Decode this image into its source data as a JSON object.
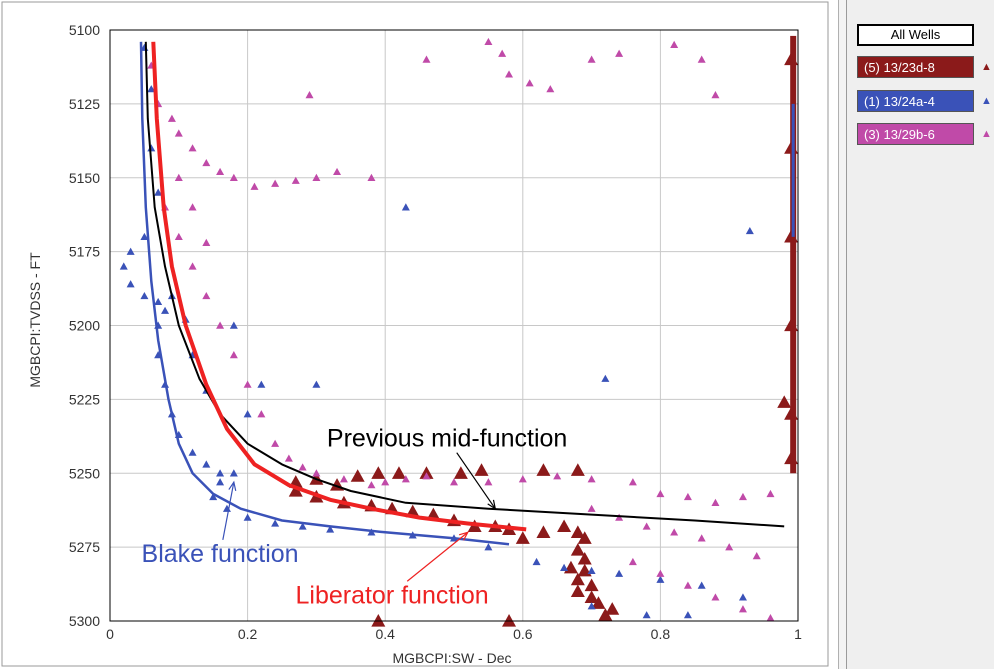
{
  "chart_data": {
    "type": "scatter",
    "xlabel": "MGBCPI:SW - Dec",
    "ylabel": "MGBCPI:TVDSS - FT",
    "xlim": [
      0,
      1
    ],
    "ylim": [
      5100,
      5300
    ],
    "y_inverted": true,
    "grid": true,
    "x_ticks": [
      "0",
      "0.2",
      "0.4",
      "0.6",
      "0.8",
      "1"
    ],
    "y_ticks": [
      "5100",
      "5125",
      "5150",
      "5175",
      "5200",
      "5225",
      "5250",
      "5275",
      "5300"
    ],
    "legend_placement": "right-panel",
    "series": [
      {
        "name": "(5) 13/23d-8",
        "color": "#8b1a1a",
        "marker": "triangle-large",
        "points": [
          [
            0.27,
            5253
          ],
          [
            0.3,
            5252
          ],
          [
            0.33,
            5254
          ],
          [
            0.36,
            5251
          ],
          [
            0.39,
            5250
          ],
          [
            0.42,
            5250
          ],
          [
            0.46,
            5250
          ],
          [
            0.51,
            5250
          ],
          [
            0.54,
            5249
          ],
          [
            0.63,
            5249
          ],
          [
            0.68,
            5249
          ],
          [
            0.27,
            5256
          ],
          [
            0.3,
            5258
          ],
          [
            0.34,
            5260
          ],
          [
            0.38,
            5261
          ],
          [
            0.41,
            5262
          ],
          [
            0.44,
            5263
          ],
          [
            0.47,
            5264
          ],
          [
            0.5,
            5266
          ],
          [
            0.53,
            5268
          ],
          [
            0.56,
            5268
          ],
          [
            0.58,
            5269
          ],
          [
            0.6,
            5272
          ],
          [
            0.63,
            5270
          ],
          [
            0.66,
            5268
          ],
          [
            0.68,
            5270
          ],
          [
            0.69,
            5272
          ],
          [
            0.68,
            5276
          ],
          [
            0.69,
            5279
          ],
          [
            0.67,
            5282
          ],
          [
            0.69,
            5283
          ],
          [
            0.68,
            5286
          ],
          [
            0.7,
            5288
          ],
          [
            0.68,
            5290
          ],
          [
            0.7,
            5292
          ],
          [
            0.71,
            5294
          ],
          [
            0.73,
            5296
          ],
          [
            0.72,
            5298
          ],
          [
            0.39,
            5300
          ],
          [
            0.58,
            5300
          ],
          [
            0.98,
            5226
          ],
          [
            0.99,
            5110
          ],
          [
            0.99,
            5140
          ],
          [
            0.99,
            5170
          ],
          [
            0.99,
            5200
          ],
          [
            0.99,
            5230
          ],
          [
            0.99,
            5245
          ]
        ]
      },
      {
        "name": "(1) 13/24a-4",
        "color": "#3a52b8",
        "marker": "triangle-small",
        "points": [
          [
            0.05,
            5106
          ],
          [
            0.06,
            5120
          ],
          [
            0.06,
            5140
          ],
          [
            0.07,
            5155
          ],
          [
            0.05,
            5170
          ],
          [
            0.03,
            5175
          ],
          [
            0.02,
            5180
          ],
          [
            0.03,
            5186
          ],
          [
            0.05,
            5190
          ],
          [
            0.07,
            5192
          ],
          [
            0.09,
            5190
          ],
          [
            0.08,
            5195
          ],
          [
            0.07,
            5200
          ],
          [
            0.07,
            5210
          ],
          [
            0.08,
            5220
          ],
          [
            0.09,
            5230
          ],
          [
            0.1,
            5237
          ],
          [
            0.12,
            5243
          ],
          [
            0.14,
            5247
          ],
          [
            0.16,
            5250
          ],
          [
            0.18,
            5250
          ],
          [
            0.16,
            5253
          ],
          [
            0.15,
            5258
          ],
          [
            0.17,
            5262
          ],
          [
            0.2,
            5265
          ],
          [
            0.24,
            5267
          ],
          [
            0.28,
            5268
          ],
          [
            0.32,
            5269
          ],
          [
            0.38,
            5270
          ],
          [
            0.44,
            5271
          ],
          [
            0.5,
            5272
          ],
          [
            0.55,
            5275
          ],
          [
            0.62,
            5280
          ],
          [
            0.66,
            5282
          ],
          [
            0.7,
            5283
          ],
          [
            0.74,
            5284
          ],
          [
            0.8,
            5286
          ],
          [
            0.86,
            5288
          ],
          [
            0.92,
            5292
          ],
          [
            0.7,
            5295
          ],
          [
            0.78,
            5298
          ],
          [
            0.84,
            5298
          ],
          [
            0.12,
            5210
          ],
          [
            0.14,
            5222
          ],
          [
            0.22,
            5220
          ],
          [
            0.3,
            5220
          ],
          [
            0.43,
            5160
          ],
          [
            0.72,
            5218
          ],
          [
            0.93,
            5168
          ],
          [
            0.18,
            5200
          ],
          [
            0.2,
            5230
          ],
          [
            0.11,
            5198
          ]
        ]
      },
      {
        "name": "(3) 13/29b-6",
        "color": "#c04aa8",
        "marker": "triangle-small",
        "points": [
          [
            0.06,
            5112
          ],
          [
            0.07,
            5125
          ],
          [
            0.09,
            5130
          ],
          [
            0.1,
            5135
          ],
          [
            0.12,
            5140
          ],
          [
            0.14,
            5145
          ],
          [
            0.16,
            5148
          ],
          [
            0.18,
            5150
          ],
          [
            0.21,
            5153
          ],
          [
            0.24,
            5152
          ],
          [
            0.27,
            5151
          ],
          [
            0.3,
            5150
          ],
          [
            0.33,
            5148
          ],
          [
            0.38,
            5150
          ],
          [
            0.46,
            5110
          ],
          [
            0.55,
            5104
          ],
          [
            0.57,
            5108
          ],
          [
            0.58,
            5115
          ],
          [
            0.61,
            5118
          ],
          [
            0.64,
            5120
          ],
          [
            0.7,
            5110
          ],
          [
            0.74,
            5108
          ],
          [
            0.82,
            5105
          ],
          [
            0.86,
            5110
          ],
          [
            0.88,
            5122
          ],
          [
            0.29,
            5122
          ],
          [
            0.08,
            5160
          ],
          [
            0.1,
            5170
          ],
          [
            0.12,
            5180
          ],
          [
            0.14,
            5190
          ],
          [
            0.16,
            5200
          ],
          [
            0.18,
            5210
          ],
          [
            0.2,
            5220
          ],
          [
            0.22,
            5230
          ],
          [
            0.24,
            5240
          ],
          [
            0.26,
            5245
          ],
          [
            0.28,
            5248
          ],
          [
            0.3,
            5250
          ],
          [
            0.34,
            5252
          ],
          [
            0.38,
            5254
          ],
          [
            0.4,
            5253
          ],
          [
            0.43,
            5252
          ],
          [
            0.46,
            5251
          ],
          [
            0.5,
            5253
          ],
          [
            0.55,
            5253
          ],
          [
            0.6,
            5252
          ],
          [
            0.65,
            5251
          ],
          [
            0.7,
            5252
          ],
          [
            0.76,
            5253
          ],
          [
            0.8,
            5257
          ],
          [
            0.84,
            5258
          ],
          [
            0.88,
            5260
          ],
          [
            0.92,
            5258
          ],
          [
            0.96,
            5257
          ],
          [
            0.7,
            5262
          ],
          [
            0.74,
            5265
          ],
          [
            0.78,
            5268
          ],
          [
            0.82,
            5270
          ],
          [
            0.86,
            5272
          ],
          [
            0.9,
            5275
          ],
          [
            0.94,
            5278
          ],
          [
            0.76,
            5280
          ],
          [
            0.8,
            5284
          ],
          [
            0.84,
            5288
          ],
          [
            0.88,
            5292
          ],
          [
            0.92,
            5296
          ],
          [
            0.96,
            5299
          ],
          [
            0.1,
            5150
          ],
          [
            0.12,
            5160
          ],
          [
            0.14,
            5172
          ]
        ]
      }
    ],
    "curves": [
      {
        "name": "Previous mid-function",
        "color": "#000000",
        "points": [
          [
            0.052,
            5104
          ],
          [
            0.055,
            5130
          ],
          [
            0.065,
            5160
          ],
          [
            0.08,
            5180
          ],
          [
            0.1,
            5200
          ],
          [
            0.13,
            5218
          ],
          [
            0.16,
            5230
          ],
          [
            0.2,
            5240
          ],
          [
            0.25,
            5247
          ],
          [
            0.3,
            5252
          ],
          [
            0.35,
            5256
          ],
          [
            0.43,
            5260
          ],
          [
            0.55,
            5262
          ],
          [
            0.7,
            5264
          ],
          [
            0.85,
            5266
          ],
          [
            0.98,
            5268
          ]
        ]
      },
      {
        "name": "Liberator function",
        "color": "#ee2222",
        "points": [
          [
            0.063,
            5104
          ],
          [
            0.068,
            5130
          ],
          [
            0.078,
            5160
          ],
          [
            0.09,
            5180
          ],
          [
            0.11,
            5200
          ],
          [
            0.14,
            5220
          ],
          [
            0.17,
            5235
          ],
          [
            0.21,
            5247
          ],
          [
            0.26,
            5254
          ],
          [
            0.32,
            5259
          ],
          [
            0.38,
            5262
          ],
          [
            0.45,
            5265
          ],
          [
            0.52,
            5267
          ],
          [
            0.605,
            5269
          ]
        ]
      },
      {
        "name": "Blake function",
        "color": "#3a52b8",
        "points": [
          [
            0.045,
            5104
          ],
          [
            0.047,
            5130
          ],
          [
            0.052,
            5160
          ],
          [
            0.06,
            5185
          ],
          [
            0.07,
            5205
          ],
          [
            0.085,
            5225
          ],
          [
            0.1,
            5240
          ],
          [
            0.12,
            5250
          ],
          [
            0.15,
            5257
          ],
          [
            0.19,
            5262
          ],
          [
            0.25,
            5266
          ],
          [
            0.32,
            5268
          ],
          [
            0.4,
            5270
          ],
          [
            0.5,
            5272
          ],
          [
            0.58,
            5274
          ]
        ]
      }
    ],
    "annotations": [
      {
        "text": "Previous mid-function",
        "color": "#000000",
        "x": 0.49,
        "y": 5241,
        "arrow_to": [
          0.56,
          5262
        ]
      },
      {
        "text": "Blake function",
        "color": "#3a52b8",
        "x": 0.16,
        "y": 5280,
        "arrow_to": [
          0.18,
          5253
        ]
      },
      {
        "text": "Liberator function",
        "color": "#ee2222",
        "x": 0.41,
        "y": 5294,
        "arrow_to": [
          0.52,
          5270
        ]
      }
    ]
  },
  "legend": {
    "header": "All Wells",
    "items": [
      {
        "label": "(5) 13/23d-8",
        "color": "#8b1a1a",
        "marker_color": "#8b1a1a"
      },
      {
        "label": "(1) 13/24a-4",
        "color": "#3a52b8",
        "marker_color": "#3a52b8"
      },
      {
        "label": "(3) 13/29b-6",
        "color": "#c04aa8",
        "marker_color": "#c04aa8"
      }
    ]
  }
}
